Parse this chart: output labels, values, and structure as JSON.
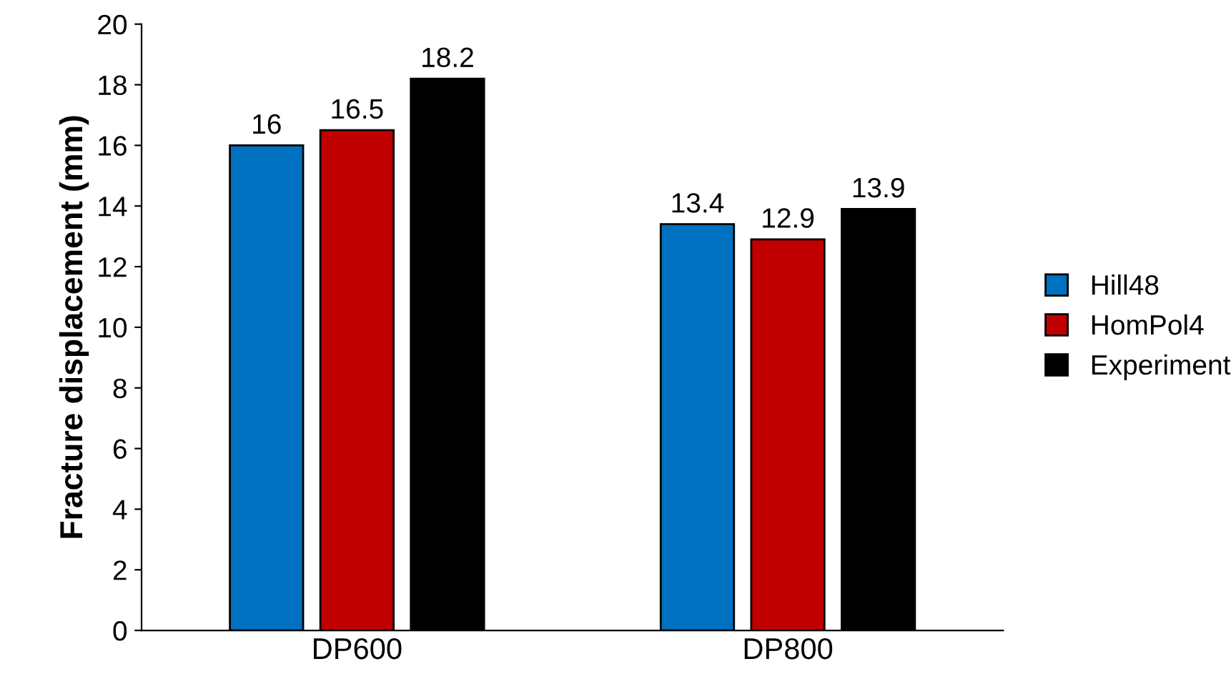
{
  "chart_data": {
    "type": "bar",
    "ylabel": "Fracture displacement (mm)",
    "categories": [
      "DP600",
      "DP800"
    ],
    "series": [
      {
        "name": "Hill48",
        "color": "#0070c0",
        "values": [
          16,
          13.4
        ]
      },
      {
        "name": "HomPol4",
        "color": "#c00000",
        "values": [
          16.5,
          12.9
        ]
      },
      {
        "name": "Experiment",
        "color": "#000000",
        "values": [
          18.2,
          13.9
        ]
      }
    ],
    "ylim": [
      0,
      20
    ],
    "yticks": [
      0,
      2,
      4,
      6,
      8,
      10,
      12,
      14,
      16,
      18,
      20
    ],
    "grid": false,
    "legend": "right",
    "data_labels": true
  }
}
